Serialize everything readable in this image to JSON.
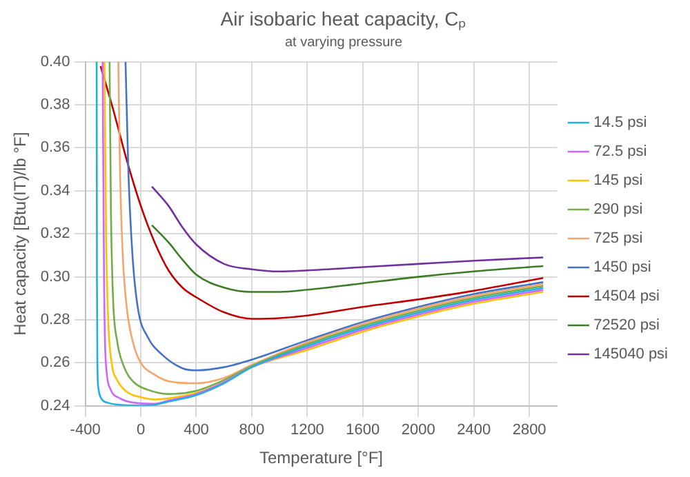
{
  "chart_data": {
    "type": "line",
    "title": "Air isobaric heat capacity, Cₚ",
    "subtitle": "at varying pressure",
    "xlabel": "Temperature [°F]",
    "ylabel": "Heat capacity [Btu(IT)/lb °F]",
    "xlim": [
      -400,
      3000
    ],
    "xticks": [
      -400,
      0,
      400,
      800,
      1200,
      1600,
      2000,
      2400,
      2800
    ],
    "ylim": [
      0.24,
      0.4
    ],
    "yticks": [
      {
        "value": 0.24,
        "label": "0.24"
      },
      {
        "value": 0.26,
        "label": "0.26"
      },
      {
        "value": 0.28,
        "label": "0.28"
      },
      {
        "value": 0.3,
        "label": "0.30"
      },
      {
        "value": 0.32,
        "label": "0.32"
      },
      {
        "value": 0.34,
        "label": "0.34"
      },
      {
        "value": 0.36,
        "label": "0.36"
      },
      {
        "value": 0.38,
        "label": "0.38"
      },
      {
        "value": 0.4,
        "label": "0.40"
      }
    ],
    "grid": true,
    "legend": "right",
    "marker": "none",
    "line_style": "solid",
    "series": [
      {
        "name": "14.5 psi",
        "color": "#1fb0e0",
        "x": [
          -318,
          -316,
          -313,
          -305,
          -280,
          -240,
          -150,
          0,
          100,
          200,
          400,
          600,
          800,
          1200,
          1600,
          2000,
          2400,
          2900
        ],
        "values": [
          0.4,
          0.3,
          0.26,
          0.248,
          0.243,
          0.2415,
          0.2405,
          0.2402,
          0.2405,
          0.242,
          0.245,
          0.2505,
          0.258,
          0.2678,
          0.2763,
          0.2833,
          0.2893,
          0.2948
        ]
      },
      {
        "name": "72.5 psi",
        "color": "#cc66ff",
        "x": [
          -275,
          -265,
          -258,
          -245,
          -220,
          -150,
          -50,
          100,
          200,
          400,
          600,
          800,
          1200,
          1600,
          2000,
          2400,
          2900
        ],
        "values": [
          0.4,
          0.3,
          0.27,
          0.255,
          0.248,
          0.2435,
          0.2415,
          0.241,
          0.2425,
          0.2455,
          0.251,
          0.258,
          0.2669,
          0.2754,
          0.2824,
          0.2884,
          0.2939
        ]
      },
      {
        "name": "145 psi",
        "color": "#ffc000",
        "x": [
          -262,
          -250,
          -235,
          -210,
          -170,
          -100,
          0,
          100,
          200,
          400,
          600,
          800,
          1200,
          1600,
          2000,
          2400,
          2900
        ],
        "values": [
          0.4,
          0.32,
          0.28,
          0.26,
          0.252,
          0.2465,
          0.244,
          0.243,
          0.2435,
          0.246,
          0.251,
          0.258,
          0.266,
          0.2745,
          0.2815,
          0.2875,
          0.293
        ]
      },
      {
        "name": "290 psi",
        "color": "#70ad47",
        "x": [
          -225,
          -215,
          -200,
          -170,
          -120,
          -50,
          50,
          200,
          400,
          600,
          800,
          1200,
          1600,
          2000,
          2400,
          2900
        ],
        "values": [
          0.4,
          0.33,
          0.29,
          0.27,
          0.258,
          0.251,
          0.2475,
          0.2455,
          0.247,
          0.252,
          0.2585,
          0.2687,
          0.2772,
          0.2842,
          0.2902,
          0.2957
        ]
      },
      {
        "name": "725 psi",
        "color": "#f4a46c",
        "x": [
          -162,
          -150,
          -130,
          -100,
          -50,
          0,
          100,
          200,
          400,
          600,
          800,
          1200,
          1600,
          2000,
          2400,
          2900
        ],
        "values": [
          0.4,
          0.35,
          0.31,
          0.285,
          0.268,
          0.26,
          0.2545,
          0.2515,
          0.2505,
          0.253,
          0.259,
          0.2696,
          0.2781,
          0.2851,
          0.2911,
          0.2966
        ]
      },
      {
        "name": "1450 psi",
        "color": "#4472c4",
        "x": [
          -110,
          -90,
          -60,
          -20,
          50,
          150,
          300,
          400,
          600,
          800,
          1200,
          1600,
          2000,
          2400,
          2900
        ],
        "values": [
          0.4,
          0.35,
          0.31,
          0.285,
          0.272,
          0.264,
          0.2575,
          0.2565,
          0.258,
          0.2615,
          0.2705,
          0.279,
          0.286,
          0.292,
          0.2975
        ]
      },
      {
        "name": "14504 psi",
        "color": "#c00000",
        "x": [
          -290,
          -200,
          -100,
          0,
          100,
          200,
          300,
          400,
          600,
          800,
          1000,
          1200,
          1600,
          2000,
          2400,
          2900
        ],
        "values": [
          0.398,
          0.378,
          0.354,
          0.333,
          0.316,
          0.303,
          0.295,
          0.2905,
          0.2835,
          0.2805,
          0.2808,
          0.282,
          0.286,
          0.2895,
          0.2935,
          0.2995
        ]
      },
      {
        "name": "72520 psi",
        "color": "#3a7d22",
        "x": [
          80,
          200,
          300,
          400,
          600,
          800,
          1000,
          1200,
          1600,
          2000,
          2400,
          2900
        ],
        "values": [
          0.324,
          0.316,
          0.308,
          0.301,
          0.295,
          0.293,
          0.293,
          0.294,
          0.297,
          0.3,
          0.3025,
          0.305
        ]
      },
      {
        "name": "145040 psi",
        "color": "#7030a0",
        "x": [
          80,
          200,
          300,
          400,
          600,
          800,
          1000,
          1200,
          1600,
          2000,
          2400,
          2900
        ],
        "values": [
          0.342,
          0.333,
          0.323,
          0.315,
          0.306,
          0.3035,
          0.3025,
          0.303,
          0.3045,
          0.306,
          0.3075,
          0.309
        ]
      }
    ]
  }
}
